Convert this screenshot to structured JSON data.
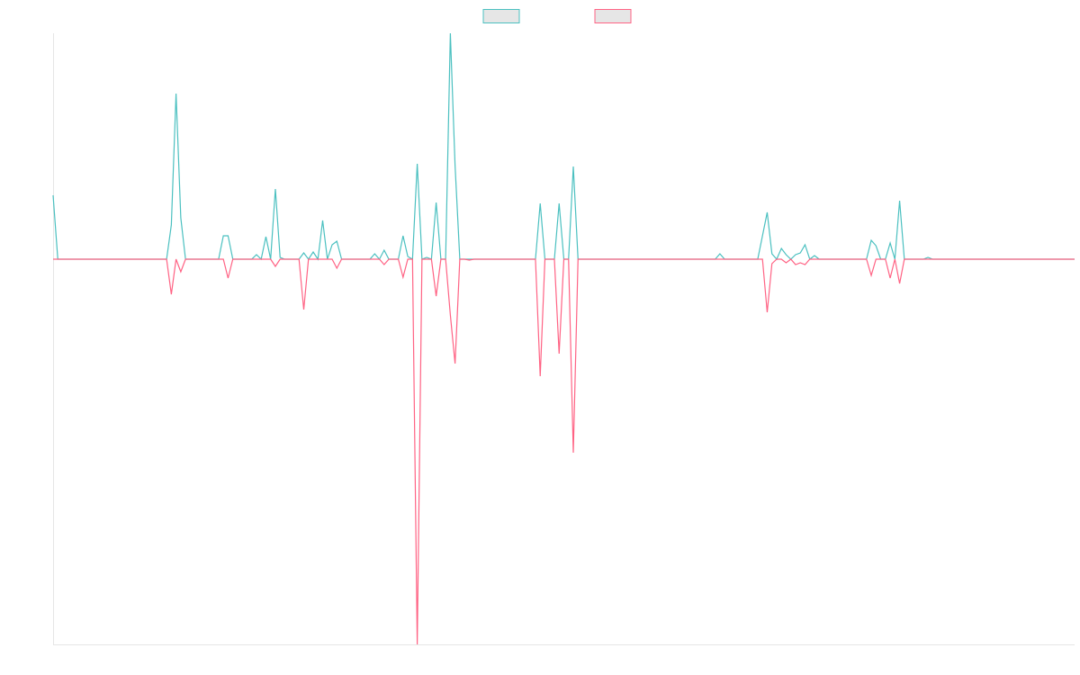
{
  "chart_data": {
    "type": "line",
    "ylim": [
      -428,
      251
    ],
    "legend": "top",
    "series": [
      {
        "color": "#4bc0c0",
        "values": [
          71,
          0,
          0,
          0,
          0,
          0,
          0,
          0,
          0,
          0,
          0,
          0,
          0,
          0,
          0,
          0,
          0,
          0,
          0,
          0,
          0,
          0,
          0,
          0,
          0,
          38,
          184,
          46,
          0,
          0,
          0,
          0,
          0,
          0,
          0,
          0,
          26,
          26,
          0,
          0,
          0,
          0,
          0,
          5,
          0,
          25,
          0,
          78,
          2,
          0,
          0,
          0,
          0,
          7,
          0,
          8,
          0,
          43,
          0,
          16,
          20,
          0,
          0,
          0,
          0,
          0,
          0,
          0,
          6,
          0,
          10,
          0,
          0,
          0,
          26,
          3,
          0,
          106,
          0,
          2,
          0,
          63,
          0,
          0,
          251,
          104,
          0,
          0,
          0,
          0,
          0,
          0,
          0,
          0,
          0,
          0,
          0,
          0,
          0,
          0,
          0,
          0,
          0,
          62,
          0,
          0,
          0,
          62,
          0,
          0,
          103,
          0,
          0,
          0,
          0,
          0,
          0,
          0,
          0,
          0,
          0,
          0,
          0,
          0,
          0,
          0,
          0,
          0,
          0,
          0,
          0,
          0,
          0,
          0,
          0,
          0,
          0,
          0,
          0,
          0,
          0,
          6,
          0,
          0,
          0,
          0,
          0,
          0,
          0,
          0,
          26,
          52,
          6,
          0,
          12,
          5,
          0,
          5,
          7,
          16,
          0,
          4,
          0,
          0,
          0,
          0,
          0,
          0,
          0,
          0,
          0,
          0,
          0,
          21,
          15,
          0,
          0,
          18,
          0,
          65,
          0,
          0,
          0,
          0,
          0,
          2,
          0,
          0,
          0,
          0,
          0,
          0,
          0,
          0,
          0,
          0,
          0,
          0,
          0,
          0,
          0,
          0,
          0,
          0,
          0,
          0,
          0,
          0,
          0,
          0,
          0,
          0,
          0,
          0,
          0,
          0,
          0
        ]
      },
      {
        "color": "#ff6384",
        "values": [
          0,
          0,
          0,
          0,
          0,
          0,
          0,
          0,
          0,
          0,
          0,
          0,
          0,
          0,
          0,
          0,
          0,
          0,
          0,
          0,
          0,
          0,
          0,
          0,
          0,
          -39,
          0,
          -14,
          0,
          0,
          0,
          0,
          0,
          0,
          0,
          0,
          0,
          -21,
          0,
          0,
          0,
          0,
          0,
          0,
          0,
          0,
          0,
          -8,
          0,
          0,
          0,
          0,
          0,
          -56,
          0,
          0,
          0,
          0,
          0,
          0,
          -10,
          0,
          0,
          0,
          0,
          0,
          0,
          0,
          0,
          0,
          -6,
          0,
          0,
          0,
          -20,
          0,
          0,
          -428,
          0,
          0,
          0,
          -41,
          0,
          0,
          -62,
          -116,
          0,
          0,
          -1,
          0,
          0,
          0,
          0,
          0,
          0,
          0,
          0,
          0,
          0,
          0,
          0,
          0,
          0,
          -130,
          0,
          0,
          0,
          -105,
          0,
          0,
          -215,
          0,
          0,
          0,
          0,
          0,
          0,
          0,
          0,
          0,
          0,
          0,
          0,
          0,
          0,
          0,
          0,
          0,
          0,
          0,
          0,
          0,
          0,
          0,
          0,
          0,
          0,
          0,
          0,
          0,
          0,
          0,
          0,
          0,
          0,
          0,
          0,
          0,
          0,
          0,
          0,
          -59,
          -5,
          0,
          0,
          -4,
          0,
          -6,
          -4,
          -6,
          0,
          0,
          0,
          0,
          0,
          0,
          0,
          0,
          0,
          0,
          0,
          0,
          0,
          -18,
          0,
          0,
          0,
          -21,
          0,
          -27,
          0,
          0,
          0,
          0,
          0,
          0,
          0,
          0,
          0,
          0,
          0,
          0,
          0,
          0,
          0,
          0,
          0,
          0,
          0,
          0,
          0,
          0,
          0,
          0,
          0,
          0,
          0,
          0,
          0,
          0,
          0,
          0,
          0,
          0,
          0,
          0,
          0
        ]
      }
    ]
  }
}
